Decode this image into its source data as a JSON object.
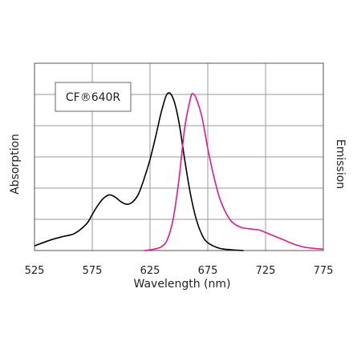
{
  "chart_data": {
    "type": "line",
    "title": "",
    "xlabel": "Wavelength (nm)",
    "ylabel_left": "Absorption",
    "ylabel_right": "Emission",
    "xlim": [
      525,
      775
    ],
    "ylim": [
      0,
      1
    ],
    "x_ticks": [
      "525",
      "575",
      "625",
      "675",
      "725",
      "775"
    ],
    "grid": true,
    "legend": {
      "text": "CF®640R",
      "placement": "top-left"
    },
    "colors": {
      "absorption": "#000000",
      "emission": "#e8158f",
      "grid": "#9a9a9a"
    },
    "series": [
      {
        "name": "Absorption",
        "color": "#000000",
        "points": [
          [
            525,
            0.03
          ],
          [
            540,
            0.07
          ],
          [
            550,
            0.09
          ],
          [
            560,
            0.11
          ],
          [
            570,
            0.17
          ],
          [
            575,
            0.23
          ],
          [
            580,
            0.29
          ],
          [
            585,
            0.335
          ],
          [
            590,
            0.355
          ],
          [
            595,
            0.34
          ],
          [
            600,
            0.31
          ],
          [
            605,
            0.295
          ],
          [
            610,
            0.31
          ],
          [
            615,
            0.36
          ],
          [
            620,
            0.46
          ],
          [
            625,
            0.58
          ],
          [
            630,
            0.73
          ],
          [
            635,
            0.89
          ],
          [
            640,
            1.0
          ],
          [
            645,
            0.97
          ],
          [
            650,
            0.82
          ],
          [
            655,
            0.58
          ],
          [
            660,
            0.36
          ],
          [
            665,
            0.2
          ],
          [
            670,
            0.1
          ],
          [
            675,
            0.05
          ],
          [
            685,
            0.015
          ],
          [
            695,
            0.005
          ],
          [
            706,
            0.0
          ]
        ]
      },
      {
        "name": "Emission",
        "color": "#e8158f",
        "points": [
          [
            620,
            0.0
          ],
          [
            628,
            0.008
          ],
          [
            635,
            0.025
          ],
          [
            640,
            0.07
          ],
          [
            645,
            0.2
          ],
          [
            650,
            0.45
          ],
          [
            655,
            0.78
          ],
          [
            660,
            0.97
          ],
          [
            662,
            1.0
          ],
          [
            665,
            0.97
          ],
          [
            670,
            0.85
          ],
          [
            675,
            0.65
          ],
          [
            680,
            0.48
          ],
          [
            685,
            0.34
          ],
          [
            690,
            0.25
          ],
          [
            695,
            0.19
          ],
          [
            700,
            0.16
          ],
          [
            705,
            0.145
          ],
          [
            710,
            0.14
          ],
          [
            715,
            0.135
          ],
          [
            720,
            0.13
          ],
          [
            725,
            0.115
          ],
          [
            730,
            0.1
          ],
          [
            740,
            0.07
          ],
          [
            750,
            0.04
          ],
          [
            760,
            0.02
          ],
          [
            775,
            0.008
          ]
        ]
      }
    ]
  }
}
